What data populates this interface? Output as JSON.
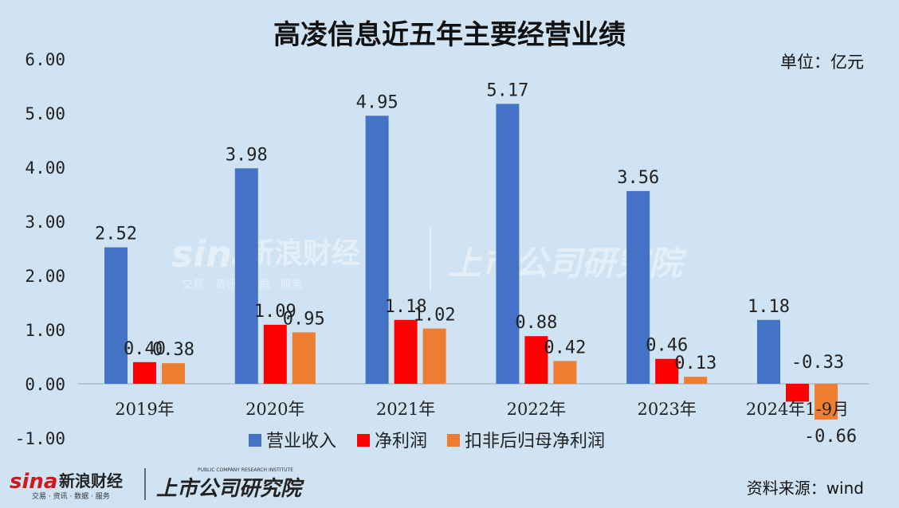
{
  "chart_data": {
    "type": "bar",
    "title": "高凌信息近五年主要经营业绩",
    "unit_label": "单位：亿元",
    "categories": [
      "2019年",
      "2020年",
      "2021年",
      "2022年",
      "2023年",
      "2024年1-9月"
    ],
    "series": [
      {
        "name": "营业收入",
        "color": "#4472c4",
        "values": [
          2.52,
          3.98,
          4.95,
          5.17,
          3.56,
          1.18
        ],
        "labels": [
          "2.52",
          "3.98",
          "4.95",
          "5.17",
          "3.56",
          "1.18"
        ]
      },
      {
        "name": "净利润",
        "color": "#ff0000",
        "values": [
          0.4,
          1.09,
          1.18,
          0.88,
          0.46,
          -0.33
        ],
        "labels": [
          "0.40",
          "1.09",
          "1.18",
          "0.88",
          "0.46",
          "-0.33"
        ]
      },
      {
        "name": "扣非后归母净利润",
        "color": "#ed7d31",
        "values": [
          0.38,
          0.95,
          1.02,
          0.42,
          0.13,
          -0.66
        ],
        "labels": [
          "0.38",
          "0.95",
          "1.02",
          "0.42",
          "0.13",
          "-0.66"
        ]
      }
    ],
    "yticks": [
      "6.00",
      "5.00",
      "4.00",
      "3.00",
      "2.00",
      "1.00",
      "0.00",
      "-1.00"
    ],
    "ylim": [
      -1,
      6
    ],
    "grid": false,
    "legend_position": "bottom"
  },
  "source_label": "资料来源：wind",
  "logos": {
    "sina_text": "sina",
    "sina_cn": "新浪财经",
    "sina_sub": "交易 · 资讯 · 数据 · 服务",
    "research_cn": "上市公司研究院",
    "research_en": "PUBLIC COMPANY RESEARCH INSTITUTE"
  }
}
